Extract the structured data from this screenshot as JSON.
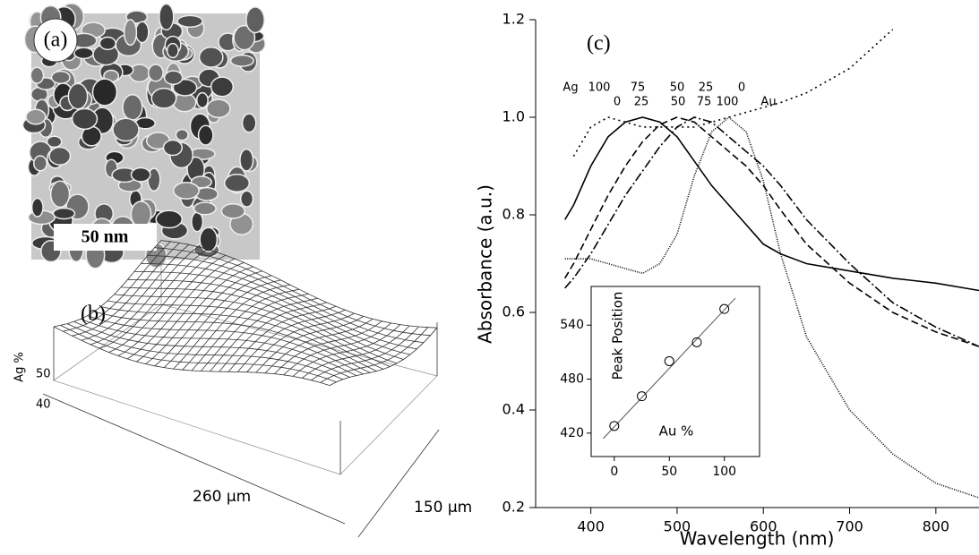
{
  "panels": {
    "a": {
      "label": "(a)",
      "scale_bar": "50 nm"
    },
    "b": {
      "label": "(b)",
      "z_label": "Ag %",
      "z_ticks": [
        "50",
        "40"
      ],
      "x_size": "260 μm",
      "y_size": "150 μm"
    }
  },
  "chart_data": [
    {
      "type": "line",
      "panel_label": "(c)",
      "x_label": "Wavelength (nm)",
      "y_label": "Absorbance (a.u.)",
      "composition_labels": {
        "ag_row": [
          "Ag",
          "100",
          "75",
          "50",
          "25",
          "0"
        ],
        "au_row": [
          "0",
          "25",
          "50",
          "75",
          "100",
          "Au"
        ]
      },
      "x": [
        370,
        380,
        400,
        420,
        440,
        460,
        480,
        500,
        520,
        540,
        560,
        580,
        600,
        620,
        650,
        700,
        750,
        800,
        850
      ],
      "series": [
        {
          "color": "#000000",
          "dash": "none",
          "values": [
            0.79,
            0.82,
            0.9,
            0.96,
            0.99,
            1.0,
            0.99,
            0.96,
            0.91,
            0.86,
            0.82,
            0.78,
            0.74,
            0.72,
            0.7,
            0.685,
            0.67,
            0.66,
            0.645
          ]
        },
        {
          "color": "#000000",
          "dash": "8 4",
          "values": [
            0.67,
            0.7,
            0.77,
            0.84,
            0.9,
            0.95,
            0.985,
            1.0,
            0.99,
            0.96,
            0.93,
            0.9,
            0.86,
            0.81,
            0.74,
            0.66,
            0.6,
            0.56,
            0.53
          ]
        },
        {
          "color": "#000000",
          "dash": "10 3 2 3",
          "values": [
            0.65,
            0.67,
            0.72,
            0.78,
            0.84,
            0.89,
            0.94,
            0.98,
            1.0,
            0.99,
            0.96,
            0.93,
            0.9,
            0.86,
            0.79,
            0.7,
            0.62,
            0.57,
            0.53
          ]
        },
        {
          "color": "#000000",
          "dash": "1 1.5",
          "values": [
            0.71,
            0.71,
            0.71,
            0.7,
            0.69,
            0.68,
            0.7,
            0.76,
            0.88,
            0.97,
            1.0,
            0.97,
            0.87,
            0.72,
            0.55,
            0.4,
            0.31,
            0.25,
            0.22
          ]
        },
        {
          "color": "#000000",
          "dash": "2 4",
          "values": [
            null,
            0.92,
            0.98,
            1.0,
            0.99,
            0.98,
            0.98,
            0.98,
            0.98,
            0.99,
            1.0,
            1.01,
            1.02,
            1.03,
            1.05,
            1.1,
            1.18,
            null,
            null
          ]
        }
      ],
      "xlim": [
        336,
        850
      ],
      "ylim": [
        0.2,
        1.2
      ],
      "xticks": [
        400,
        500,
        600,
        700,
        800
      ],
      "yticks": [
        0.2,
        0.4,
        0.6,
        0.8,
        {
          "value": 1,
          "label": "1.0"
        },
        1.2
      ]
    },
    {
      "type": "scatter",
      "x_label": "Au %",
      "y_label": "Peak Position",
      "x": [
        0,
        25,
        50,
        75,
        100
      ],
      "values": [
        428,
        461,
        500,
        521,
        558
      ],
      "fit_line": {
        "x": [
          -10,
          110
        ],
        "values": [
          414,
          570
        ]
      },
      "xlim": [
        -21,
        132
      ],
      "ylim": [
        394,
        583
      ],
      "xticks": [
        0,
        50,
        100
      ],
      "yticks": [
        420,
        480,
        540
      ]
    }
  ]
}
